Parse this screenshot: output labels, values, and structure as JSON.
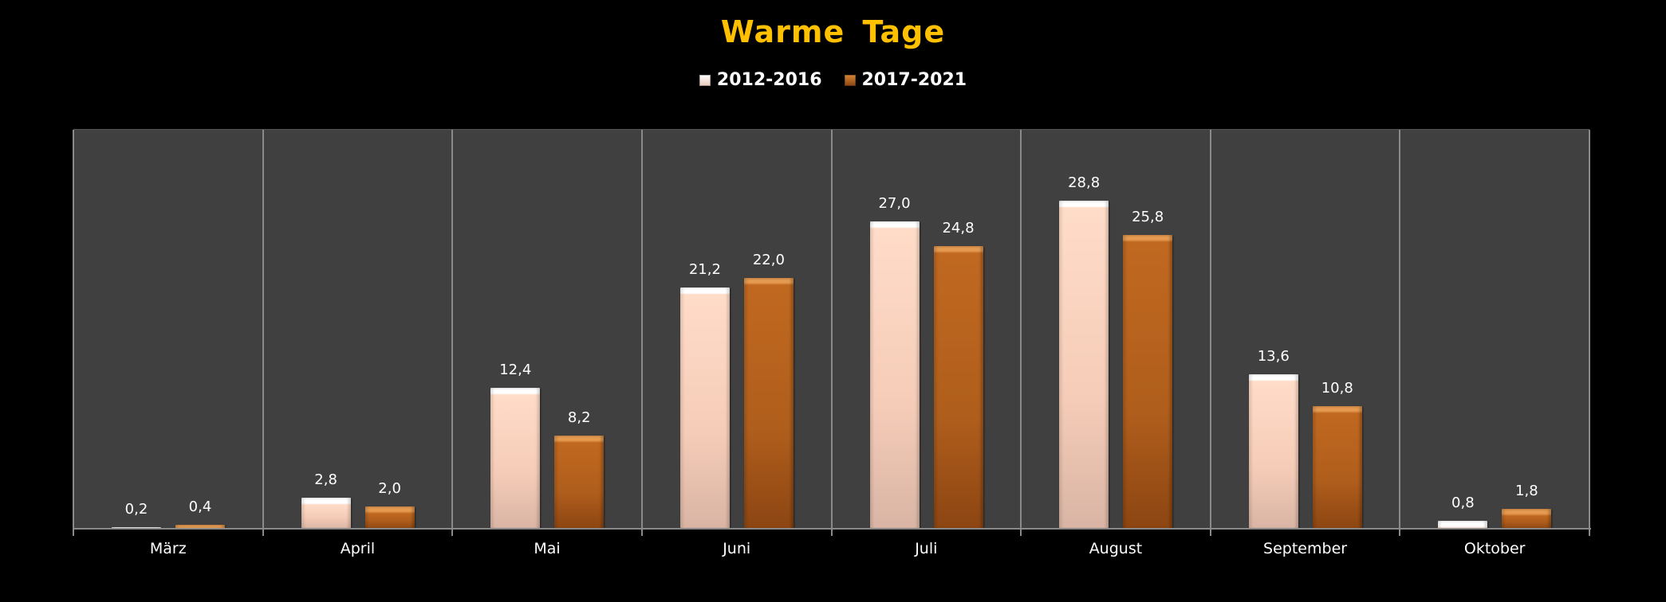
{
  "chart_data": {
    "type": "bar",
    "title": "Warme  Tage",
    "xlabel": "",
    "ylabel": "",
    "ylim": [
      0,
      35
    ],
    "grid": "vertical category separators",
    "legend_position": "top",
    "categories": [
      "März",
      "April",
      "Mai",
      "Juni",
      "Juli",
      "August",
      "September",
      "Oktober"
    ],
    "series": [
      {
        "name": "2012-2016",
        "color": "#F5CCB8",
        "values": [
          0.2,
          2.8,
          12.4,
          21.2,
          27.0,
          28.8,
          13.6,
          0.8
        ],
        "labels": [
          "0,2",
          "2,8",
          "12,4",
          "21,2",
          "27,0",
          "28,8",
          "13,6",
          "0,8"
        ]
      },
      {
        "name": "2017-2021",
        "color": "#B05E1C",
        "values": [
          0.4,
          2.0,
          8.2,
          22.0,
          24.8,
          25.8,
          10.8,
          1.8
        ],
        "labels": [
          "0,4",
          "2,0",
          "8,2",
          "22,0",
          "24,8",
          "25,8",
          "10,8",
          "1,8"
        ]
      }
    ]
  },
  "colors": {
    "title": "#FFC000",
    "plot_bg": "#404040",
    "page_bg": "#000000"
  }
}
